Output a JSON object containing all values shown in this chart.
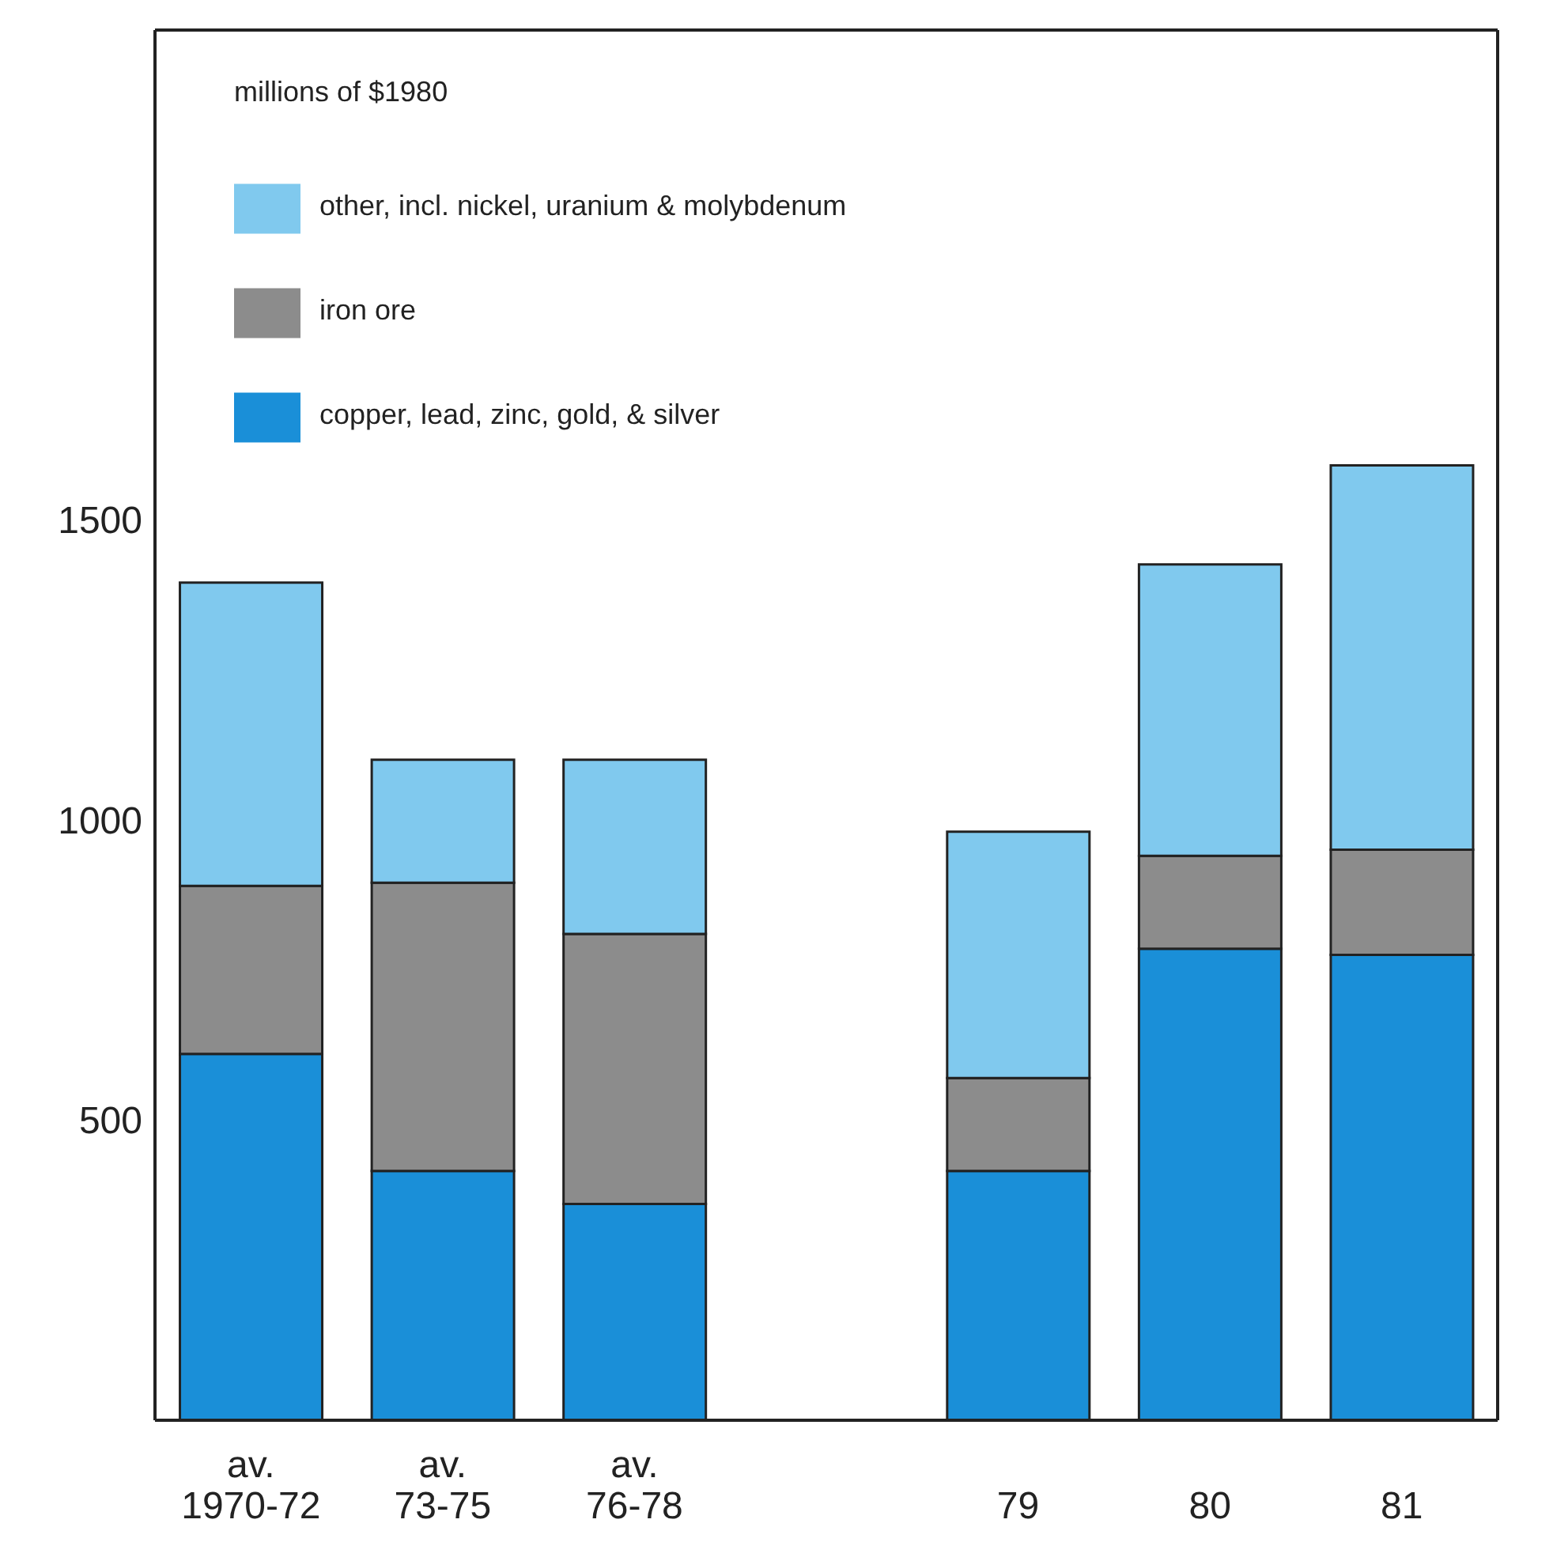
{
  "chart_data": {
    "type": "bar",
    "stacked": true,
    "annotations": [
      "millions of $1980"
    ],
    "categories": [
      "av.\n1970-72",
      "av.\n73-75",
      "av.\n76-78",
      null,
      "79",
      "80",
      "81"
    ],
    "series": [
      {
        "name": "copper, lead, zinc, gold, & silver",
        "color": "#1a8fd8",
        "values": [
          610,
          415,
          360,
          null,
          415,
          785,
          775
        ]
      },
      {
        "name": "iron ore",
        "color": "#8c8c8c",
        "values": [
          280,
          480,
          450,
          null,
          155,
          155,
          175
        ]
      },
      {
        "name": "other, incl. nickel, uranium & molybdenum",
        "color": "#80c9ee",
        "values": [
          505,
          205,
          290,
          null,
          410,
          485,
          640
        ]
      }
    ],
    "ylim": [
      0,
      2315
    ],
    "yticks": [
      500,
      1000,
      1500
    ],
    "legend": "top left"
  }
}
